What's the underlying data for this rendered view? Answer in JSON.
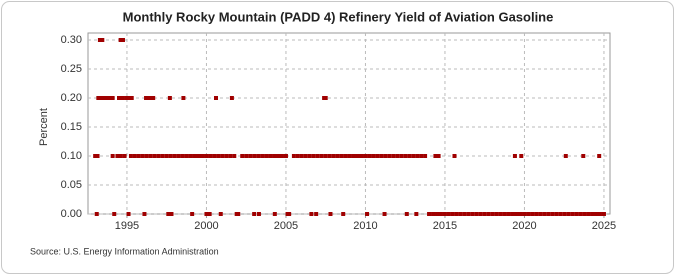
{
  "chart_data": {
    "type": "scatter",
    "title": "Monthly Rocky Mountain (PADD 4) Refinery Yield of Aviation Gasoline",
    "y_label": "Percent",
    "source": "Source: U.S. Energy Information Administration",
    "color": "#a00000",
    "grid": true,
    "xlim": [
      1992.55,
      2025.38
    ],
    "ylim": [
      0,
      0.3
    ],
    "xticks": [
      1995,
      2000,
      2005,
      2010,
      2015,
      2020,
      2025
    ],
    "yticks": [
      {
        "value": 0,
        "label": "0.00"
      },
      {
        "value": 0.05,
        "label": "0.05"
      },
      {
        "value": 0.1,
        "label": "0.10"
      },
      {
        "value": 0.15,
        "label": "0.15"
      },
      {
        "value": 0.2,
        "label": "0.20"
      },
      {
        "value": 0.25,
        "label": "0.25"
      },
      {
        "value": 0.3,
        "label": "0.30"
      }
    ],
    "x": [
      1993.3,
      1993.45,
      1994.6,
      1994.75,
      1993.2,
      1993.35,
      1993.5,
      1993.65,
      1993.8,
      1993.95,
      1994.1,
      1994.5,
      1994.75,
      1995.0,
      1995.15,
      1995.3,
      1996.2,
      1996.35,
      1996.5,
      1996.65,
      1997.7,
      1998.55,
      2000.6,
      2001.6,
      2007.4,
      2007.5,
      1993.0,
      1993.15,
      1994.1,
      1994.4,
      1994.6,
      1994.85,
      1995.25,
      1995.5,
      1995.75,
      1996,
      1996.25,
      1996.5,
      1996.75,
      1997,
      1997.25,
      1997.5,
      1997.75,
      1998,
      1998.25,
      1998.5,
      1998.75,
      1999,
      1999.25,
      1999.5,
      1999.75,
      2000,
      2000.25,
      2000.5,
      2000.75,
      2001,
      2001.25,
      2001.5,
      2001.75,
      2002.25,
      2002.5,
      2002.75,
      2003,
      2003.25,
      2003.5,
      2003.75,
      2004,
      2004.25,
      2004.5,
      2004.75,
      2005,
      2005.5,
      2005.75,
      2006,
      2006.25,
      2006.5,
      2006.75,
      2007,
      2007.25,
      2007.5,
      2007.75,
      2008,
      2008.25,
      2008.5,
      2008.75,
      2009,
      2009.25,
      2009.5,
      2009.75,
      2010,
      2010.25,
      2010.5,
      2010.75,
      2011,
      2011.25,
      2011.5,
      2011.75,
      2012,
      2012.25,
      2012.5,
      2012.75,
      2013,
      2013.25,
      2013.5,
      2013.75,
      2014.4,
      2014.6,
      2015.6,
      2019.4,
      2019.8,
      2022.6,
      2023.7,
      2024.7,
      1993.1,
      1994.2,
      1995.1,
      1996.1,
      1997.6,
      1997.8,
      1999.1,
      2000.0,
      2000.2,
      2000.9,
      2001.9,
      2002.0,
      2003.0,
      2003.3,
      2004.3,
      2005.1,
      2005.2,
      2006.6,
      2006.9,
      2007.8,
      2008.6,
      2010.1,
      2011.2,
      2012.6,
      2013.2,
      2014,
      2014.25,
      2014.5,
      2014.75,
      2015,
      2015.25,
      2015.5,
      2015.75,
      2016,
      2016.25,
      2016.5,
      2016.75,
      2017,
      2017.25,
      2017.5,
      2017.75,
      2018,
      2018.25,
      2018.5,
      2018.75,
      2019,
      2019.25,
      2019.5,
      2019.75,
      2020,
      2020.25,
      2020.5,
      2020.75,
      2021,
      2021.25,
      2021.5,
      2021.75,
      2022,
      2022.25,
      2022.5,
      2022.75,
      2023,
      2023.25,
      2023.5,
      2023.75,
      2024,
      2024.25,
      2024.5,
      2024.75,
      2025
    ],
    "values": [
      0.3,
      0.3,
      0.3,
      0.3,
      0.2,
      0.2,
      0.2,
      0.2,
      0.2,
      0.2,
      0.2,
      0.2,
      0.2,
      0.2,
      0.2,
      0.2,
      0.2,
      0.2,
      0.2,
      0.2,
      0.2,
      0.2,
      0.2,
      0.2,
      0.2,
      0.2,
      0.1,
      0.1,
      0.1,
      0.1,
      0.1,
      0.1,
      0.1,
      0.1,
      0.1,
      0.1,
      0.1,
      0.1,
      0.1,
      0.1,
      0.1,
      0.1,
      0.1,
      0.1,
      0.1,
      0.1,
      0.1,
      0.1,
      0.1,
      0.1,
      0.1,
      0.1,
      0.1,
      0.1,
      0.1,
      0.1,
      0.1,
      0.1,
      0.1,
      0.1,
      0.1,
      0.1,
      0.1,
      0.1,
      0.1,
      0.1,
      0.1,
      0.1,
      0.1,
      0.1,
      0.1,
      0.1,
      0.1,
      0.1,
      0.1,
      0.1,
      0.1,
      0.1,
      0.1,
      0.1,
      0.1,
      0.1,
      0.1,
      0.1,
      0.1,
      0.1,
      0.1,
      0.1,
      0.1,
      0.1,
      0.1,
      0.1,
      0.1,
      0.1,
      0.1,
      0.1,
      0.1,
      0.1,
      0.1,
      0.1,
      0.1,
      0.1,
      0.1,
      0.1,
      0.1,
      0.1,
      0.1,
      0.1,
      0.1,
      0.1,
      0.1,
      0.1,
      0.1,
      0,
      0,
      0,
      0,
      0,
      0,
      0,
      0,
      0,
      0,
      0,
      0,
      0,
      0,
      0,
      0,
      0,
      0,
      0,
      0,
      0,
      0,
      0,
      0,
      0,
      0,
      0,
      0,
      0,
      0,
      0,
      0,
      0,
      0,
      0,
      0,
      0,
      0,
      0,
      0,
      0,
      0,
      0,
      0,
      0,
      0,
      0,
      0,
      0,
      0,
      0,
      0,
      0,
      0,
      0,
      0,
      0,
      0,
      0,
      0,
      0,
      0,
      0,
      0,
      0,
      0,
      0,
      0,
      0,
      0
    ]
  }
}
